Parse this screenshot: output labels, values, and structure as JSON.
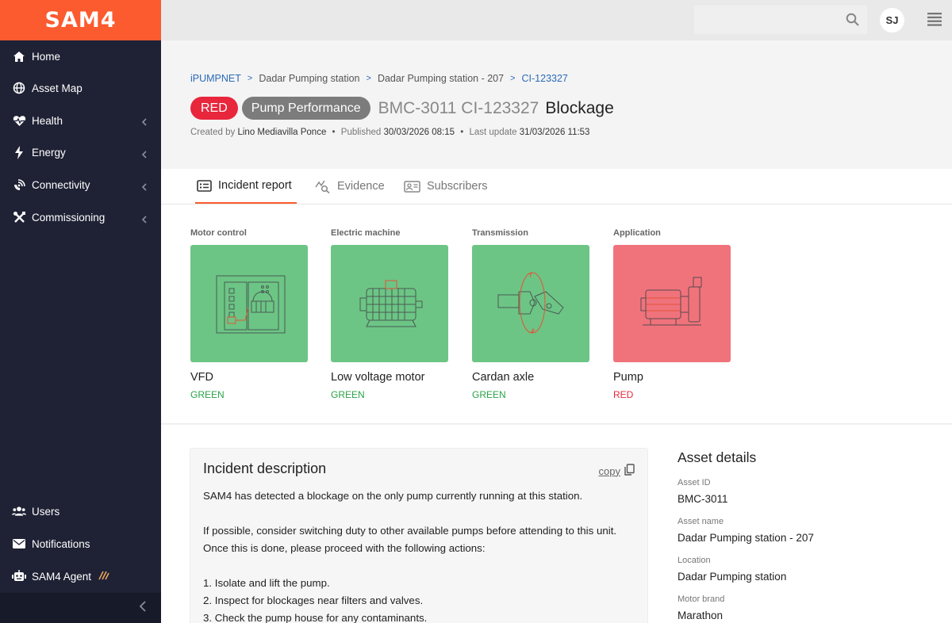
{
  "app": {
    "logo": "SAM4"
  },
  "sidebar": {
    "items": [
      {
        "label": "Home",
        "icon": "home-icon",
        "has_chevron": false
      },
      {
        "label": "Asset Map",
        "icon": "globe-icon",
        "has_chevron": false
      },
      {
        "label": "Health",
        "icon": "heart-pulse-icon",
        "has_chevron": true
      },
      {
        "label": "Energy",
        "icon": "lightning-icon",
        "has_chevron": true
      },
      {
        "label": "Connectivity",
        "icon": "satellite-icon",
        "has_chevron": true
      },
      {
        "label": "Commissioning",
        "icon": "tools-icon",
        "has_chevron": true
      }
    ],
    "bottom_items": [
      {
        "label": "Users",
        "icon": "users-icon"
      },
      {
        "label": "Notifications",
        "icon": "envelope-icon"
      },
      {
        "label": "SAM4 Agent",
        "icon": "robot-icon"
      }
    ]
  },
  "topbar": {
    "search_placeholder": "",
    "avatar_initials": "SJ"
  },
  "breadcrumb": [
    "iPUMPNET",
    "Dadar Pumping station",
    "Dadar Pumping station - 207",
    "CI-123327"
  ],
  "incident": {
    "status_badge": "RED",
    "category_badge": "Pump Performance",
    "id": "BMC-3011 CI-123327",
    "name": "Blockage",
    "created_label": "Created by",
    "created_by": "Lino Mediavilla Ponce",
    "published_label": "Published",
    "published": "30/03/2026 08:15",
    "updated_label": "Last update",
    "updated": "31/03/2026 11:53"
  },
  "tabs": [
    {
      "label": "Incident report",
      "active": true
    },
    {
      "label": "Evidence",
      "active": false
    },
    {
      "label": "Subscribers",
      "active": false
    }
  ],
  "components": [
    {
      "category": "Motor control",
      "name": "VFD",
      "status": "GREEN",
      "tile_color": "#6cc585",
      "status_color": "#2aa24a"
    },
    {
      "category": "Electric machine",
      "name": "Low voltage motor",
      "status": "GREEN",
      "tile_color": "#6cc585",
      "status_color": "#2aa24a"
    },
    {
      "category": "Transmission",
      "name": "Cardan axle",
      "status": "GREEN",
      "tile_color": "#6cc585",
      "status_color": "#2aa24a"
    },
    {
      "category": "Application",
      "name": "Pump",
      "status": "RED",
      "tile_color": "#f0737c",
      "status_color": "#e8263c"
    }
  ],
  "description": {
    "title": "Incident description",
    "copy_label": "copy",
    "para1": "SAM4 has detected a blockage on the only pump currently running at this station.",
    "para2": "If possible, consider switching duty to other available pumps before attending to this unit. Once this is done, please proceed with the following actions:",
    "steps": [
      "1. Isolate and lift the pump.",
      "2. Inspect for blockages near filters and valves.",
      "3. Check the pump house for any contaminants."
    ]
  },
  "asset_details": {
    "title": "Asset details",
    "fields": [
      {
        "label": "Asset ID",
        "value": "BMC-3011"
      },
      {
        "label": "Asset name",
        "value": "Dadar Pumping station - 207"
      },
      {
        "label": "Location",
        "value": "Dadar Pumping station"
      },
      {
        "label": "Motor brand",
        "value": "Marathon"
      }
    ]
  },
  "colors": {
    "accent": "#fb5b2f",
    "sidebar_bg": "#1f2235",
    "link": "#2c6bb6",
    "red": "#e8263c"
  }
}
